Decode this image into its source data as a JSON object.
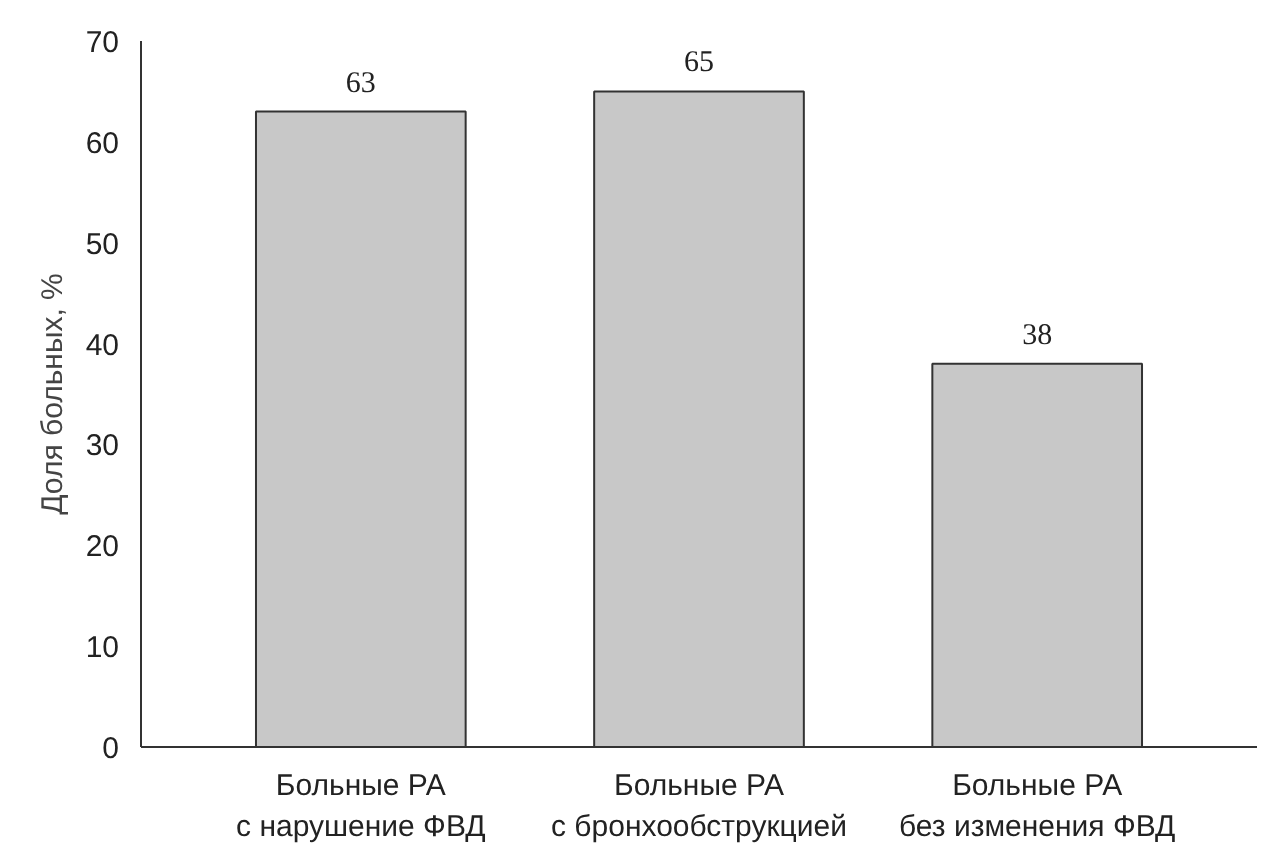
{
  "chart_data": {
    "type": "bar",
    "ylabel": "Доля больных, %",
    "categories": [
      "Больные РА\nс нарушение ФВД",
      "Больные РА\nс бронхообструкцией",
      "Больные РА\nбез изменения ФВД"
    ],
    "values": [
      63,
      65,
      38
    ],
    "color": "#c8c8c8",
    "ylim": [
      0,
      70
    ],
    "yticks": [
      0,
      10,
      20,
      30,
      40,
      50,
      60,
      70
    ],
    "grid": false,
    "data_labels": true
  }
}
